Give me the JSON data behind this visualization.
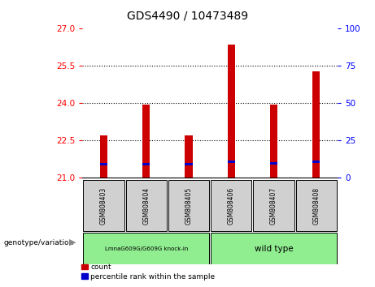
{
  "title": "GDS4490 / 10473489",
  "samples": [
    "GSM808403",
    "GSM808404",
    "GSM808405",
    "GSM808406",
    "GSM808407",
    "GSM808408"
  ],
  "bar_bottom": 21,
  "bar_tops": [
    22.7,
    23.95,
    22.7,
    26.35,
    23.95,
    25.3
  ],
  "blue_marker_pos": [
    21.55,
    21.55,
    21.55,
    21.65,
    21.6,
    21.65
  ],
  "ylim_left": [
    21,
    27
  ],
  "ylim_right": [
    0,
    100
  ],
  "yticks_left": [
    21,
    22.5,
    24,
    25.5,
    27
  ],
  "yticks_right": [
    0,
    25,
    50,
    75,
    100
  ],
  "bar_color": "#cc0000",
  "blue_color": "#0000cc",
  "bar_width": 0.18,
  "legend_count_label": "count",
  "legend_pct_label": "percentile rank within the sample",
  "genotype_label": "genotype/variation",
  "group_label_1": "LmnaG609G/G609G knock-in",
  "group_label_2": "wild type",
  "sample_box_color": "#d0d0d0",
  "group1_color": "#90EE90",
  "group2_color": "#90EE90"
}
